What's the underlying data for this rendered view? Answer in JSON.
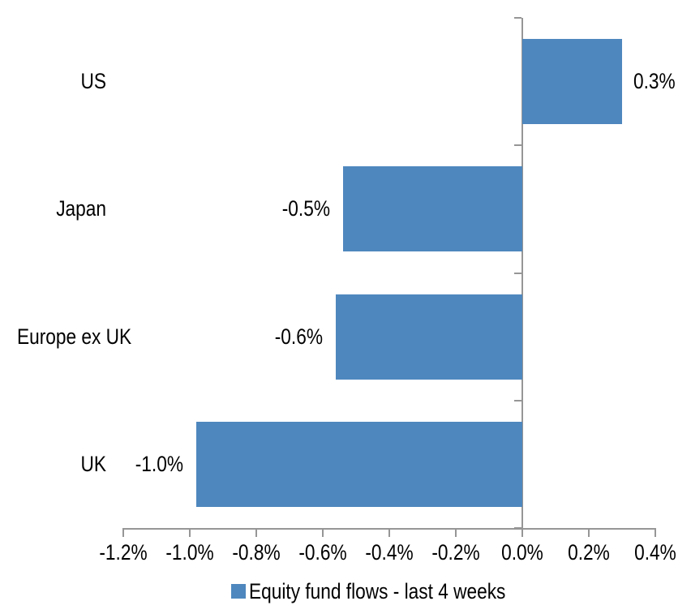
{
  "chart_data": {
    "type": "bar",
    "orientation": "horizontal",
    "title": "",
    "xlabel": "",
    "ylabel": "",
    "categories": [
      "US",
      "Japan",
      "Europe ex UK",
      "UK"
    ],
    "values": [
      0.3,
      -0.5,
      -0.6,
      -1.0
    ],
    "values_as_drawn": [
      0.3,
      -0.54,
      -0.56,
      -0.98
    ],
    "data_labels": [
      "0.3%",
      "-0.5%",
      "-0.6%",
      "-1.0%"
    ],
    "series": [
      {
        "name": "Equity fund flows - last 4 weeks",
        "values": [
          0.3,
          -0.5,
          -0.6,
          -1.0
        ]
      }
    ],
    "legend": {
      "position": "bottom",
      "entries": [
        "Equity fund flows - last 4 weeks"
      ]
    },
    "x_axis": {
      "min": -1.2,
      "max": 0.4,
      "tick_step": 0.2,
      "format": "percent",
      "tick_labels": [
        "-1.2%",
        "-1.0%",
        "-0.8%",
        "-0.6%",
        "-0.4%",
        "-0.2%",
        "0.0%",
        "0.2%",
        "0.4%"
      ]
    },
    "y_axis": {
      "label": "",
      "tick_marks_at_category_boundaries": true
    },
    "grid": false,
    "colors": {
      "bar": "#4E87BE",
      "axis": "#969696",
      "text": "#000000",
      "background": "#FFFFFF"
    }
  }
}
